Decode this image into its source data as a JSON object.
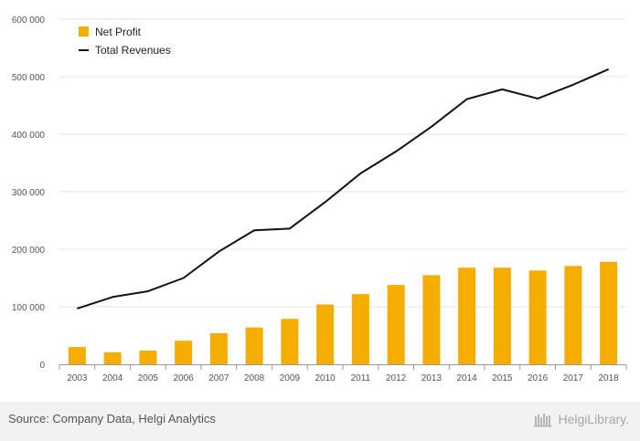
{
  "chart_data": {
    "type": "bar",
    "categories": [
      "2003",
      "2004",
      "2005",
      "2006",
      "2007",
      "2008",
      "2009",
      "2010",
      "2011",
      "2012",
      "2013",
      "2014",
      "2015",
      "2016",
      "2017",
      "2018"
    ],
    "series": [
      {
        "name": "Net Profit",
        "type": "bar",
        "color": "#f5ad00",
        "values": [
          30000,
          21000,
          24000,
          41000,
          54000,
          64000,
          79000,
          104000,
          122000,
          138000,
          155000,
          168000,
          168000,
          163000,
          171000,
          178000
        ]
      },
      {
        "name": "Total Revenues",
        "type": "line",
        "color": "#111111",
        "values": [
          97000,
          117000,
          127000,
          150000,
          196000,
          233000,
          236000,
          282000,
          332000,
          370000,
          413000,
          461000,
          478000,
          462000,
          486000,
          513000
        ]
      }
    ],
    "ylim": [
      0,
      600000
    ],
    "yticks": [
      "0",
      "100 000",
      "200 000",
      "300 000",
      "400 000",
      "500 000",
      "600 000"
    ],
    "grid": true,
    "legend_position": "top-left"
  },
  "footer": {
    "source": "Source: Company Data, Helgi Analytics",
    "brand": "HelgiLibrary."
  }
}
